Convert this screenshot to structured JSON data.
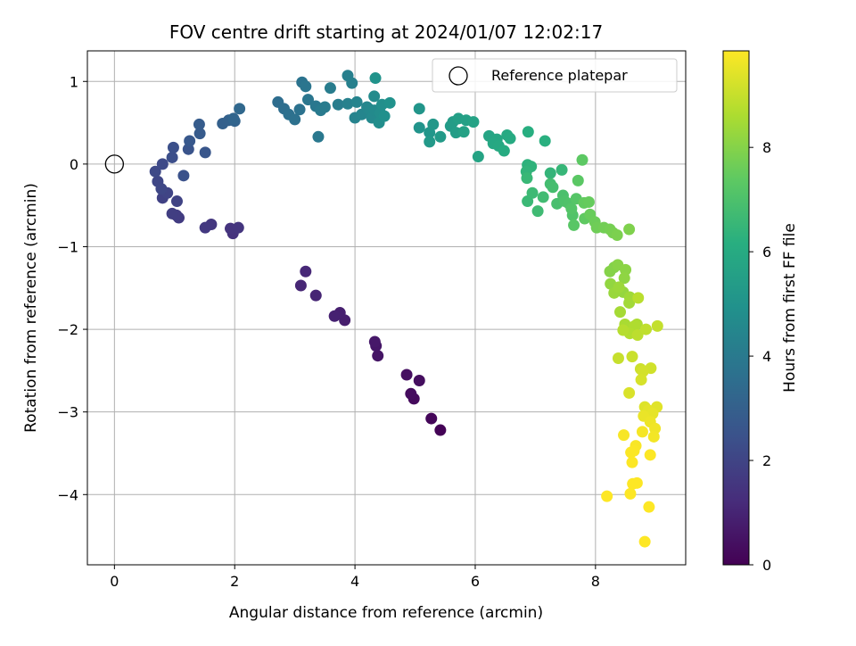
{
  "chart_data": {
    "type": "scatter",
    "title": "FOV centre drift starting at 2024/01/07 12:02:17",
    "xlabel": "Angular distance from reference (arcmin)",
    "ylabel": "Rotation from reference (arcmin)",
    "xlim": [
      -0.45,
      9.5
    ],
    "ylim": [
      -4.85,
      1.37
    ],
    "xticks": [
      0,
      2,
      4,
      6,
      8
    ],
    "yticks": [
      -4,
      -3,
      -2,
      -1,
      0,
      1
    ],
    "xtick_labels": [
      "0",
      "2",
      "4",
      "6",
      "8"
    ],
    "ytick_labels": [
      "−4",
      "−3",
      "−2",
      "−1",
      "0",
      "1"
    ],
    "grid": true,
    "legend_position": "top-right",
    "colormap": "viridis",
    "colorbar": {
      "label": "Hours from first FF file",
      "range": [
        0,
        9.85
      ],
      "ticks": [
        0,
        2,
        4,
        6,
        8
      ],
      "tick_labels": [
        "0",
        "2",
        "4",
        "6",
        "8"
      ]
    },
    "reference": {
      "name": "Reference platepar",
      "x": 0,
      "y": 0
    },
    "points": [
      [
        5.42,
        -3.22,
        0.05
      ],
      [
        5.27,
        -3.08,
        0.15
      ],
      [
        4.98,
        -2.84,
        0.25
      ],
      [
        4.93,
        -2.78,
        0.3
      ],
      [
        5.07,
        -2.62,
        0.35
      ],
      [
        4.86,
        -2.55,
        0.4
      ],
      [
        4.38,
        -2.32,
        0.55
      ],
      [
        4.35,
        -2.2,
        0.6
      ],
      [
        4.33,
        -2.15,
        0.65
      ],
      [
        3.83,
        -1.89,
        0.8
      ],
      [
        3.75,
        -1.8,
        0.85
      ],
      [
        3.66,
        -1.84,
        0.9
      ],
      [
        3.35,
        -1.59,
        1.0
      ],
      [
        3.1,
        -1.47,
        1.05
      ],
      [
        3.18,
        -1.3,
        1.1
      ],
      [
        1.97,
        -0.84,
        1.4
      ],
      [
        1.93,
        -0.78,
        1.45
      ],
      [
        2.06,
        -0.77,
        1.5
      ],
      [
        1.61,
        -0.73,
        1.55
      ],
      [
        1.51,
        -0.77,
        1.6
      ],
      [
        1.07,
        -0.65,
        1.7
      ],
      [
        1.03,
        -0.62,
        1.75
      ],
      [
        0.96,
        -0.6,
        1.8
      ],
      [
        0.8,
        -0.41,
        1.9
      ],
      [
        1.04,
        -0.45,
        1.95
      ],
      [
        0.88,
        -0.35,
        2.0
      ],
      [
        0.72,
        -0.21,
        2.05
      ],
      [
        0.78,
        -0.3,
        2.1
      ],
      [
        0.68,
        -0.09,
        2.15
      ],
      [
        0.8,
        0.0,
        2.2
      ],
      [
        0.96,
        0.08,
        2.35
      ],
      [
        0.98,
        0.2,
        2.4
      ],
      [
        1.15,
        -0.14,
        2.45
      ],
      [
        1.23,
        0.18,
        2.55
      ],
      [
        1.51,
        0.14,
        2.6
      ],
      [
        1.25,
        0.28,
        2.7
      ],
      [
        1.42,
        0.37,
        2.8
      ],
      [
        1.41,
        0.48,
        2.85
      ],
      [
        1.8,
        0.49,
        3.0
      ],
      [
        1.9,
        0.53,
        3.05
      ],
      [
        2.0,
        0.52,
        3.1
      ],
      [
        1.98,
        0.55,
        3.2
      ],
      [
        2.08,
        0.67,
        3.3
      ],
      [
        2.72,
        0.75,
        3.5
      ],
      [
        2.82,
        0.67,
        3.55
      ],
      [
        2.9,
        0.6,
        3.6
      ],
      [
        3.0,
        0.54,
        3.65
      ],
      [
        3.08,
        0.66,
        3.7
      ],
      [
        3.12,
        0.99,
        3.75
      ],
      [
        3.18,
        0.94,
        3.8
      ],
      [
        3.22,
        0.78,
        3.85
      ],
      [
        3.35,
        0.7,
        3.9
      ],
      [
        3.39,
        0.33,
        3.95
      ],
      [
        3.43,
        0.65,
        4.0
      ],
      [
        3.5,
        0.69,
        4.05
      ],
      [
        3.59,
        0.92,
        4.1
      ],
      [
        3.72,
        0.72,
        4.15
      ],
      [
        3.88,
        1.07,
        4.2
      ],
      [
        3.95,
        0.98,
        4.25
      ],
      [
        3.88,
        0.73,
        4.3
      ],
      [
        4.0,
        0.56,
        4.35
      ],
      [
        4.03,
        0.75,
        4.4
      ],
      [
        4.11,
        0.6,
        4.45
      ],
      [
        4.2,
        0.69,
        4.5
      ],
      [
        4.25,
        0.66,
        4.55
      ],
      [
        4.28,
        0.56,
        4.6
      ],
      [
        4.33,
        0.65,
        4.65
      ],
      [
        4.32,
        0.82,
        4.7
      ],
      [
        4.42,
        0.62,
        4.75
      ],
      [
        4.4,
        0.5,
        4.8
      ],
      [
        4.45,
        0.72,
        4.85
      ],
      [
        4.49,
        0.58,
        4.9
      ],
      [
        4.58,
        0.74,
        4.95
      ],
      [
        4.34,
        1.04,
        5.0
      ],
      [
        5.07,
        0.44,
        5.05
      ],
      [
        5.07,
        0.67,
        5.1
      ],
      [
        5.24,
        0.38,
        5.15
      ],
      [
        5.3,
        0.48,
        5.2
      ],
      [
        5.24,
        0.27,
        5.25
      ],
      [
        5.42,
        0.33,
        5.3
      ],
      [
        5.59,
        0.46,
        5.35
      ],
      [
        5.63,
        0.51,
        5.4
      ],
      [
        5.68,
        0.38,
        5.45
      ],
      [
        5.72,
        0.55,
        5.5
      ],
      [
        5.85,
        0.53,
        5.55
      ],
      [
        5.81,
        0.39,
        5.6
      ],
      [
        5.97,
        0.51,
        5.65
      ],
      [
        6.05,
        0.09,
        5.7
      ],
      [
        6.23,
        0.34,
        5.75
      ],
      [
        6.36,
        0.3,
        5.8
      ],
      [
        6.3,
        0.25,
        5.85
      ],
      [
        6.39,
        0.22,
        5.9
      ],
      [
        6.53,
        0.35,
        5.95
      ],
      [
        6.58,
        0.31,
        6.0
      ],
      [
        6.48,
        0.16,
        6.05
      ],
      [
        6.88,
        0.39,
        6.15
      ],
      [
        7.16,
        0.28,
        6.2
      ],
      [
        6.87,
        -0.01,
        6.3
      ],
      [
        6.93,
        -0.03,
        6.35
      ],
      [
        6.85,
        -0.09,
        6.4
      ],
      [
        7.25,
        -0.11,
        6.45
      ],
      [
        7.44,
        -0.07,
        6.5
      ],
      [
        6.86,
        -0.17,
        6.55
      ],
      [
        6.87,
        -0.45,
        6.6
      ],
      [
        6.95,
        -0.35,
        6.65
      ],
      [
        7.04,
        -0.57,
        6.7
      ],
      [
        7.13,
        -0.4,
        6.75
      ],
      [
        7.25,
        -0.24,
        6.8
      ],
      [
        7.29,
        -0.28,
        6.85
      ],
      [
        7.36,
        -0.48,
        6.9
      ],
      [
        7.46,
        -0.38,
        6.95
      ],
      [
        7.49,
        -0.45,
        7.0
      ],
      [
        7.56,
        -0.48,
        7.05
      ],
      [
        7.62,
        -0.62,
        7.1
      ],
      [
        7.6,
        -0.54,
        7.15
      ],
      [
        7.68,
        -0.42,
        7.2
      ],
      [
        7.64,
        -0.74,
        7.25
      ],
      [
        7.71,
        -0.2,
        7.3
      ],
      [
        7.78,
        0.05,
        7.35
      ],
      [
        7.82,
        -0.66,
        7.4
      ],
      [
        7.81,
        -0.47,
        7.45
      ],
      [
        7.89,
        -0.46,
        7.5
      ],
      [
        7.91,
        -0.61,
        7.55
      ],
      [
        7.99,
        -0.7,
        7.6
      ],
      [
        8.02,
        -0.77,
        7.65
      ],
      [
        8.14,
        -0.77,
        7.7
      ],
      [
        8.24,
        -0.79,
        7.75
      ],
      [
        8.29,
        -0.83,
        7.8
      ],
      [
        8.36,
        -0.86,
        7.85
      ],
      [
        8.56,
        -0.79,
        7.9
      ],
      [
        8.31,
        -1.25,
        7.95
      ],
      [
        8.24,
        -1.3,
        8.0
      ],
      [
        8.37,
        -1.22,
        8.05
      ],
      [
        8.5,
        -1.28,
        8.1
      ],
      [
        8.48,
        -1.38,
        8.15
      ],
      [
        8.25,
        -1.45,
        8.2
      ],
      [
        8.46,
        -1.55,
        8.25
      ],
      [
        8.31,
        -1.56,
        8.3
      ],
      [
        8.39,
        -1.49,
        8.35
      ],
      [
        8.57,
        -1.61,
        8.4
      ],
      [
        8.56,
        -1.68,
        8.45
      ],
      [
        8.41,
        -1.79,
        8.5
      ],
      [
        8.49,
        -1.94,
        8.55
      ],
      [
        8.69,
        -1.94,
        8.6
      ],
      [
        8.65,
        -1.96,
        8.65
      ],
      [
        8.57,
        -2.05,
        8.7
      ],
      [
        8.46,
        -2.01,
        8.75
      ],
      [
        8.71,
        -1.62,
        8.8
      ],
      [
        8.7,
        -2.07,
        8.85
      ],
      [
        8.84,
        -2.0,
        8.9
      ],
      [
        9.03,
        -1.96,
        8.95
      ],
      [
        8.38,
        -2.35,
        9.0
      ],
      [
        8.61,
        -2.33,
        9.05
      ],
      [
        8.75,
        -2.48,
        9.1
      ],
      [
        8.92,
        -2.47,
        9.15
      ],
      [
        8.79,
        -2.51,
        9.2
      ],
      [
        8.76,
        -2.61,
        9.25
      ],
      [
        8.56,
        -2.77,
        9.3
      ],
      [
        8.82,
        -2.94,
        9.35
      ],
      [
        9.02,
        -2.94,
        9.4
      ],
      [
        8.88,
        -2.98,
        9.45
      ],
      [
        8.95,
        -3.02,
        9.5
      ],
      [
        8.8,
        -3.05,
        9.55
      ],
      [
        8.91,
        -3.12,
        9.6
      ],
      [
        8.99,
        -3.2,
        9.65
      ],
      [
        8.97,
        -3.3,
        9.7
      ],
      [
        8.78,
        -3.24,
        9.72
      ],
      [
        8.47,
        -3.28,
        9.75
      ],
      [
        8.67,
        -3.41,
        9.78
      ],
      [
        8.64,
        -3.47,
        9.8
      ],
      [
        8.59,
        -3.49,
        9.82
      ],
      [
        8.91,
        -3.52,
        9.83
      ],
      [
        8.61,
        -3.61,
        9.84
      ],
      [
        8.19,
        -4.02,
        9.85
      ],
      [
        8.62,
        -3.87,
        9.85
      ],
      [
        8.69,
        -3.86,
        9.85
      ],
      [
        8.58,
        -3.99,
        9.85
      ],
      [
        8.89,
        -4.15,
        9.85
      ],
      [
        8.82,
        -4.57,
        9.85
      ]
    ]
  }
}
